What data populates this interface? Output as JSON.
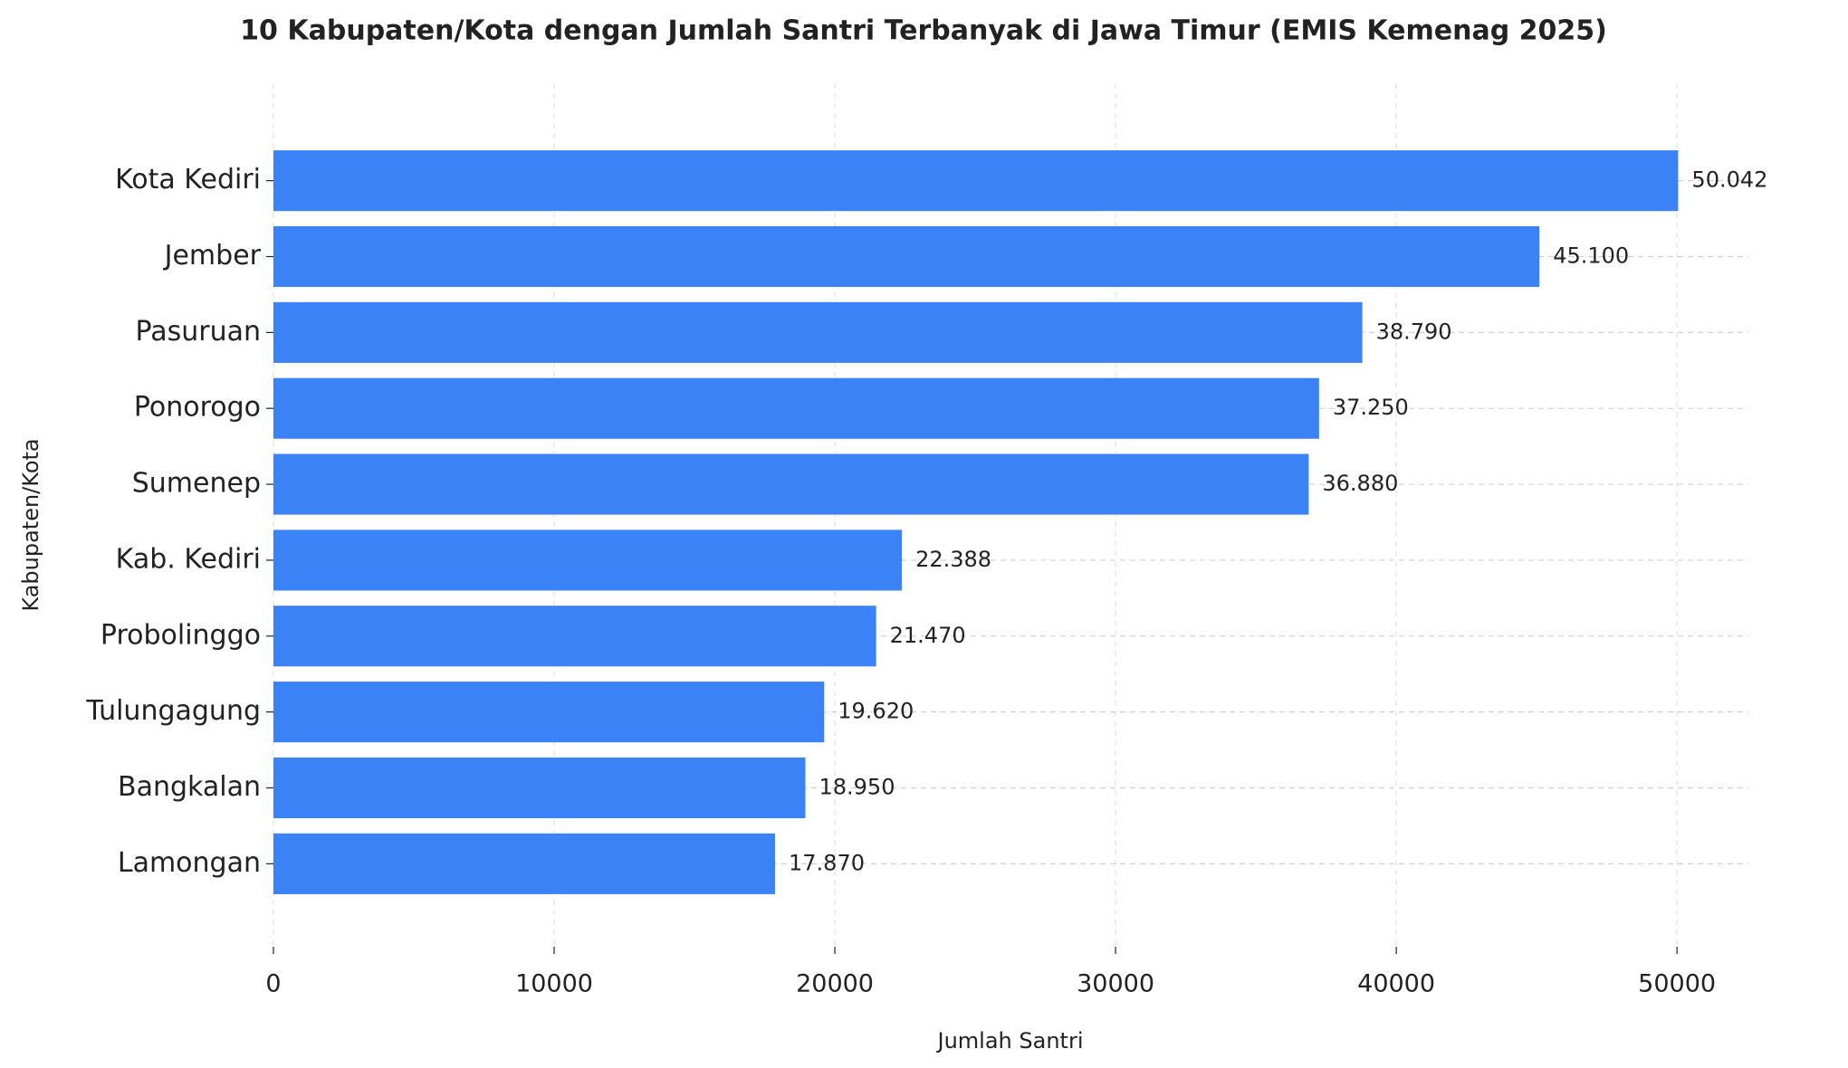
{
  "chart_data": {
    "type": "barh",
    "title": "10 Kabupaten/Kota dengan Jumlah Santri Terbanyak di Jawa Timur (EMIS Kemenag 2025)",
    "x_label": "Jumlah Santri",
    "y_label": "Kabupaten/Kota",
    "categories": [
      "Kota Kediri",
      "Jember",
      "Pasuruan",
      "Ponorogo",
      "Sumenep",
      "Kab. Kediri",
      "Probolinggo",
      "Tulungagung",
      "Bangkalan",
      "Lamongan"
    ],
    "values": [
      50042,
      45100,
      38790,
      37250,
      36880,
      22388,
      21470,
      19620,
      18950,
      17870
    ],
    "value_labels": [
      "50.042",
      "45.100",
      "38.790",
      "37.250",
      "36.880",
      "22.388",
      "21.470",
      "19.620",
      "18.950",
      "17.870"
    ],
    "color": "#3b82f6",
    "xlim": [
      0,
      52544
    ],
    "xticks": [
      0,
      10000,
      20000,
      30000,
      40000,
      50000
    ],
    "grid": true
  }
}
